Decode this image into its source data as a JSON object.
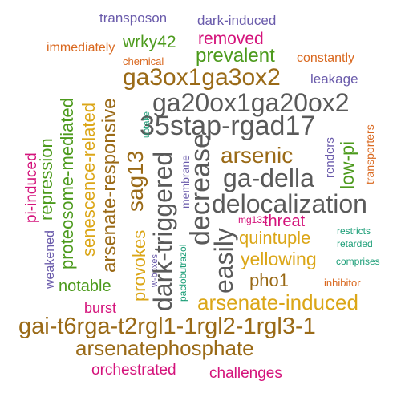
{
  "words": [
    {
      "text": "transposon",
      "color": "purple"
    },
    {
      "text": "dark-induced",
      "color": "purple"
    },
    {
      "text": "immediately",
      "color": "orange"
    },
    {
      "text": "wrky42",
      "color": "green"
    },
    {
      "text": "removed",
      "color": "magenta"
    },
    {
      "text": "chemical",
      "color": "orange"
    },
    {
      "text": "prevalent",
      "color": "green"
    },
    {
      "text": "constantly",
      "color": "orange"
    },
    {
      "text": "ga3ox1ga3ox2",
      "color": "brown"
    },
    {
      "text": "leakage",
      "color": "purple"
    },
    {
      "text": "ga20ox1ga20ox2",
      "color": "gray"
    },
    {
      "text": "35stap-rgad17",
      "color": "gray"
    },
    {
      "text": "arsenic",
      "color": "brown"
    },
    {
      "text": "ga-della",
      "color": "gray"
    },
    {
      "text": "delocalization",
      "color": "gray"
    },
    {
      "text": "threat",
      "color": "magenta"
    },
    {
      "text": "quintuple",
      "color": "gold"
    },
    {
      "text": "mg132",
      "color": "magenta"
    },
    {
      "text": "restricts",
      "color": "teal"
    },
    {
      "text": "retarded",
      "color": "teal"
    },
    {
      "text": "yellowing",
      "color": "gold"
    },
    {
      "text": "comprises",
      "color": "teal"
    },
    {
      "text": "pho1",
      "color": "brown"
    },
    {
      "text": "notable",
      "color": "green"
    },
    {
      "text": "inhibitor",
      "color": "orange"
    },
    {
      "text": "arsenate-induced",
      "color": "gold"
    },
    {
      "text": "burst",
      "color": "magenta"
    },
    {
      "text": "gai-t6rga-t2rgl1-1rgl2-1rgl3-1",
      "color": "brown"
    },
    {
      "text": "arsenatephosphate",
      "color": "brown"
    },
    {
      "text": "orchestrated",
      "color": "magenta"
    },
    {
      "text": "challenges",
      "color": "magenta"
    },
    {
      "text": "repression",
      "color": "green"
    },
    {
      "text": "proteosome-mediated",
      "color": "green"
    },
    {
      "text": "senescence-related",
      "color": "gold"
    },
    {
      "text": "arsenate-responsive",
      "color": "brown"
    },
    {
      "text": "sag13",
      "color": "brown"
    },
    {
      "text": "uptake",
      "color": "teal"
    },
    {
      "text": "pi-induced",
      "color": "magenta"
    },
    {
      "text": "weakened",
      "color": "purple"
    },
    {
      "text": "provokes",
      "color": "gold"
    },
    {
      "text": "w-boxes",
      "color": "purple"
    },
    {
      "text": "dark-triggered",
      "color": "gray"
    },
    {
      "text": "membrane",
      "color": "purple"
    },
    {
      "text": "paclobutrazol",
      "color": "teal"
    },
    {
      "text": "decrease",
      "color": "gray"
    },
    {
      "text": "easily",
      "color": "gray"
    },
    {
      "text": "renders",
      "color": "purple"
    },
    {
      "text": "low-pi",
      "color": "green"
    },
    {
      "text": "transporters",
      "color": "orange"
    }
  ]
}
